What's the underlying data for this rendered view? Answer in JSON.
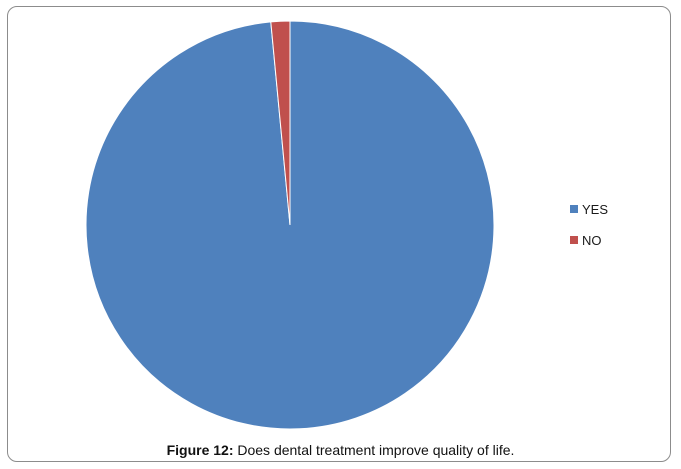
{
  "chart_data": {
    "type": "pie",
    "categories": [
      "YES",
      "NO"
    ],
    "values": [
      98.5,
      1.5
    ],
    "colors": [
      "#4f81bd",
      "#c0504d"
    ],
    "legend": {
      "position": "right",
      "entries": [
        "YES",
        "NO"
      ]
    }
  },
  "caption": {
    "label": "Figure 12:",
    "text": " Does dental treatment improve quality of life."
  }
}
